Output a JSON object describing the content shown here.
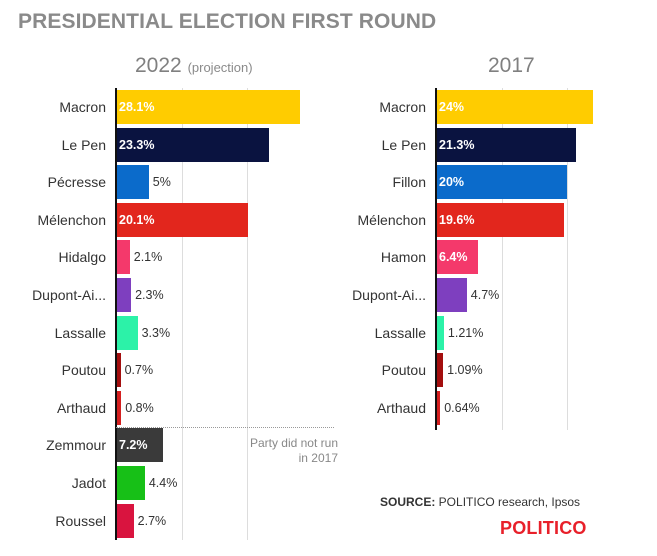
{
  "title": "PRESIDENTIAL ELECTION FIRST ROUND",
  "note": "Party did not run in 2017",
  "source": {
    "label": "SOURCE:",
    "text": " POLITICO research, Ipsos"
  },
  "brand": "POLITICO",
  "chart_data": [
    {
      "type": "bar",
      "orientation": "horizontal",
      "title": "2022",
      "subtitle": "(projection)",
      "xlim": [
        0,
        30
      ],
      "grid": true,
      "categories": [
        "Macron",
        "Le Pen",
        "Pécresse",
        "Mélenchon",
        "Hidalgo",
        "Dupont-Ai...",
        "Lassalle",
        "Poutou",
        "Arthaud",
        "Zemmour",
        "Jadot",
        "Roussel"
      ],
      "values": [
        28.1,
        23.3,
        5,
        20.1,
        2.1,
        2.3,
        3.3,
        0.7,
        0.8,
        7.2,
        4.4,
        2.7
      ],
      "labels": [
        "28.1%",
        "23.3%",
        "5%",
        "20.1%",
        "2.1%",
        "2.3%",
        "3.3%",
        "0.7%",
        "0.8%",
        "7.2%",
        "4.4%",
        "2.7%"
      ],
      "colors": [
        "#ffcc00",
        "#0a1340",
        "#0b6bcb",
        "#e2261d",
        "#f4396b",
        "#7e3fbf",
        "#2cf2a8",
        "#a30e0e",
        "#d41f1f",
        "#3a3a3a",
        "#17c017",
        "#d9143f"
      ]
    },
    {
      "type": "bar",
      "orientation": "horizontal",
      "title": "2017",
      "xlim": [
        0,
        30
      ],
      "grid": true,
      "categories": [
        "Macron",
        "Le Pen",
        "Fillon",
        "Mélenchon",
        "Hamon",
        "Dupont-Ai...",
        "Lassalle",
        "Poutou",
        "Arthaud"
      ],
      "values": [
        24,
        21.3,
        20,
        19.6,
        6.4,
        4.7,
        1.21,
        1.09,
        0.64
      ],
      "labels": [
        "24%",
        "21.3%",
        "20%",
        "19.6%",
        "6.4%",
        "4.7%",
        "1.21%",
        "1.09%",
        "0.64%"
      ],
      "colors": [
        "#ffcc00",
        "#0a1340",
        "#0b6bcb",
        "#e2261d",
        "#f4396b",
        "#7e3fbf",
        "#2cf2a8",
        "#a30e0e",
        "#d41f1f"
      ]
    }
  ]
}
